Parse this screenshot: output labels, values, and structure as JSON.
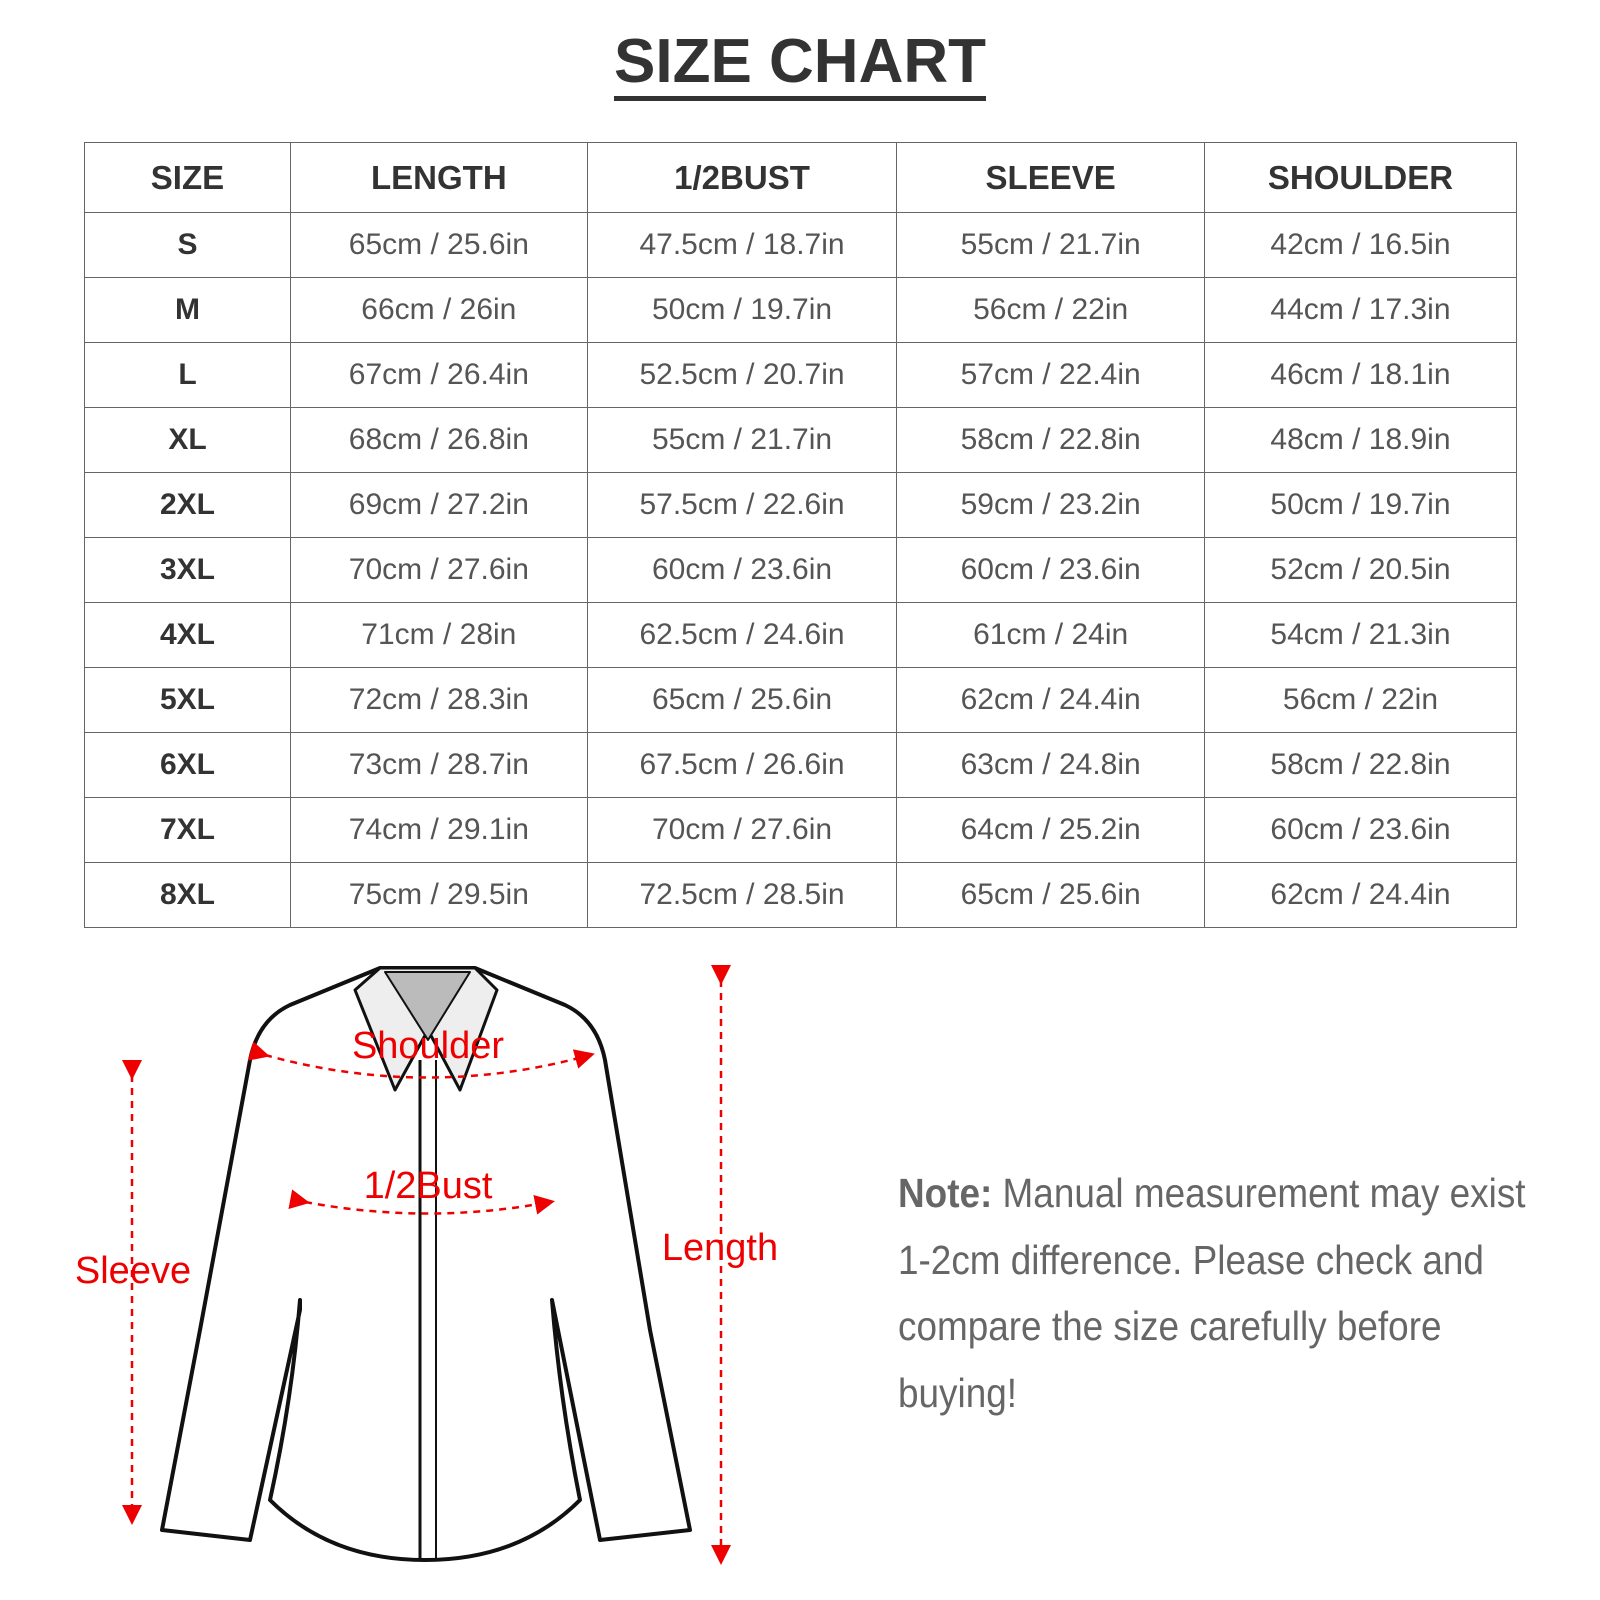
{
  "title": "SIZE CHART",
  "table": {
    "headers": [
      "SIZE",
      "LENGTH",
      "1/2BUST",
      "SLEEVE",
      "SHOULDER"
    ],
    "rows": [
      [
        "S",
        "65cm / 25.6in",
        "47.5cm / 18.7in",
        "55cm / 21.7in",
        "42cm / 16.5in"
      ],
      [
        "M",
        "66cm / 26in",
        "50cm / 19.7in",
        "56cm / 22in",
        "44cm / 17.3in"
      ],
      [
        "L",
        "67cm / 26.4in",
        "52.5cm / 20.7in",
        "57cm / 22.4in",
        "46cm / 18.1in"
      ],
      [
        "XL",
        "68cm / 26.8in",
        "55cm / 21.7in",
        "58cm / 22.8in",
        "48cm / 18.9in"
      ],
      [
        "2XL",
        "69cm / 27.2in",
        "57.5cm / 22.6in",
        "59cm / 23.2in",
        "50cm / 19.7in"
      ],
      [
        "3XL",
        "70cm / 27.6in",
        "60cm / 23.6in",
        "60cm / 23.6in",
        "52cm / 20.5in"
      ],
      [
        "4XL",
        "71cm / 28in",
        "62.5cm / 24.6in",
        "61cm / 24in",
        "54cm / 21.3in"
      ],
      [
        "5XL",
        "72cm / 28.3in",
        "65cm / 25.6in",
        "62cm / 24.4in",
        "56cm / 22in"
      ],
      [
        "6XL",
        "73cm / 28.7in",
        "67.5cm / 26.6in",
        "63cm / 24.8in",
        "58cm / 22.8in"
      ],
      [
        "7XL",
        "74cm / 29.1in",
        "70cm / 27.6in",
        "64cm / 25.2in",
        "60cm / 23.6in"
      ],
      [
        "8XL",
        "75cm / 29.5in",
        "72.5cm / 28.5in",
        "65cm / 25.6in",
        "62cm / 24.4in"
      ]
    ]
  },
  "diagram": {
    "labels": {
      "shoulder": "Shoulder",
      "bust": "1/2Bust",
      "sleeve": "Sleeve",
      "length": "Length"
    },
    "accent_color": "#e00000",
    "icon": "shirt-illustration"
  },
  "note": {
    "label": "Note:",
    "text": "Manual measurement may exist 1-2cm difference. Please check and compare the size carefully before buying!"
  }
}
